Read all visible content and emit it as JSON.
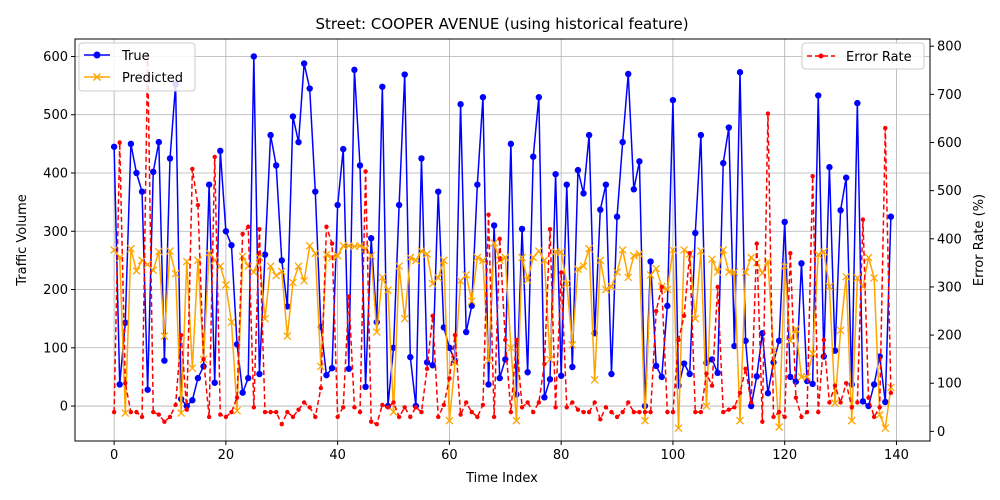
{
  "chart_data": {
    "type": "line",
    "title": "Street: COOPER AVENUE (using historical feature)",
    "xlabel": "Time Index",
    "ylabel": "Traffic Volume",
    "y2label": "Error Rate (%)",
    "xlim": [
      -7,
      146
    ],
    "ylim": [
      -60,
      630
    ],
    "y2lim": [
      -20,
      815
    ],
    "xticks": [
      0,
      20,
      40,
      60,
      80,
      100,
      120,
      140
    ],
    "yticks": [
      0,
      100,
      200,
      300,
      400,
      500,
      600
    ],
    "y2ticks": [
      0,
      100,
      200,
      300,
      400,
      500,
      600,
      700,
      800
    ],
    "grid": true,
    "legend_left_position": "upper left",
    "legend_right_position": "upper right",
    "colors": {
      "true": "#0000ff",
      "predicted": "#ffa500",
      "error": "#ff0000"
    },
    "series": [
      {
        "name": "True",
        "axis": "left",
        "style": "solid-circle",
        "values": [
          445,
          37,
          143,
          450,
          400,
          368,
          28,
          402,
          453,
          78,
          425,
          552,
          12,
          0,
          10,
          48,
          68,
          380,
          40,
          438,
          300,
          276,
          106,
          23,
          48,
          600,
          55,
          260,
          465,
          413,
          250,
          171,
          497,
          453,
          588,
          545,
          368,
          136,
          53,
          65,
          345,
          441,
          64,
          577,
          413,
          33,
          288,
          144,
          548,
          0,
          100,
          345,
          569,
          84,
          0,
          425,
          75,
          70,
          368,
          135,
          100,
          78,
          518,
          127,
          172,
          380,
          530,
          37,
          310,
          48,
          80,
          450,
          20,
          304,
          58,
          428,
          530,
          15,
          46,
          398,
          52,
          380,
          67,
          405,
          365,
          465,
          125,
          337,
          380,
          55,
          325,
          453,
          570,
          372,
          420,
          0,
          248,
          69,
          50,
          172,
          525,
          35,
          73,
          55,
          297,
          465,
          74,
          80,
          57,
          417,
          478,
          103,
          573,
          112,
          0,
          51,
          125,
          22,
          75,
          112,
          316,
          50,
          42,
          245,
          43,
          38,
          533,
          85,
          410,
          95,
          336,
          392,
          37,
          520,
          8,
          0,
          37,
          85,
          7,
          325
        ]
      },
      {
        "name": "Predicted",
        "axis": "left",
        "style": "solid-x",
        "values": [
          268,
          255,
          -12,
          270,
          232,
          250,
          243,
          233,
          265,
          120,
          266,
          227,
          -12,
          248,
          65,
          250,
          80,
          263,
          250,
          240,
          208,
          144,
          -8,
          257,
          240,
          230,
          255,
          150,
          240,
          224,
          231,
          120,
          212,
          240,
          215,
          275,
          262,
          68,
          260,
          255,
          258,
          275,
          275,
          274,
          275,
          270,
          258,
          127,
          221,
          199,
          -10,
          240,
          150,
          255,
          250,
          266,
          261,
          210,
          220,
          250,
          -25,
          75,
          215,
          225,
          180,
          255,
          250,
          78,
          280,
          250,
          255,
          100,
          -25,
          255,
          216,
          255,
          266,
          250,
          80,
          265,
          264,
          210,
          105,
          235,
          240,
          270,
          45,
          250,
          200,
          205,
          230,
          268,
          221,
          258,
          261,
          -25,
          225,
          236,
          205,
          200,
          268,
          -38,
          268,
          261,
          150,
          266,
          0,
          252,
          230,
          268,
          230,
          230,
          -25,
          230,
          255,
          246,
          228,
          248,
          95,
          -36,
          240,
          112,
          132,
          50,
          50,
          90,
          260,
          265,
          205,
          5,
          130,
          222,
          -25,
          220,
          205,
          255,
          220,
          -15,
          -38,
          32
        ]
      },
      {
        "name": "Error Rate",
        "axis": "right",
        "style": "dashed-dot",
        "values": [
          40,
          600,
          100,
          40,
          40,
          30,
          780,
          40,
          35,
          20,
          30,
          55,
          200,
          45,
          545,
          470,
          150,
          30,
          570,
          35,
          30,
          40,
          70,
          410,
          425,
          50,
          420,
          40,
          40,
          40,
          15,
          40,
          30,
          45,
          60,
          50,
          30,
          90,
          425,
          390,
          30,
          50,
          280,
          50,
          40,
          540,
          20,
          15,
          55,
          50,
          60,
          30,
          50,
          30,
          50,
          40,
          130,
          240,
          30,
          55,
          110,
          200,
          35,
          60,
          40,
          30,
          55,
          450,
          30,
          400,
          190,
          40,
          190,
          50,
          60,
          40,
          60,
          140,
          420,
          50,
          330,
          50,
          60,
          45,
          40,
          40,
          60,
          25,
          50,
          40,
          30,
          40,
          60,
          40,
          40,
          40,
          40,
          250,
          300,
          40,
          40,
          190,
          240,
          370,
          40,
          40,
          120,
          95,
          300,
          40,
          45,
          50,
          80,
          130,
          60,
          390,
          20,
          660,
          30,
          40,
          30,
          370,
          70,
          30,
          40,
          530,
          40,
          190,
          60,
          95,
          60,
          100,
          50,
          60,
          440,
          70,
          30,
          50,
          630,
          80
        ]
      }
    ]
  }
}
